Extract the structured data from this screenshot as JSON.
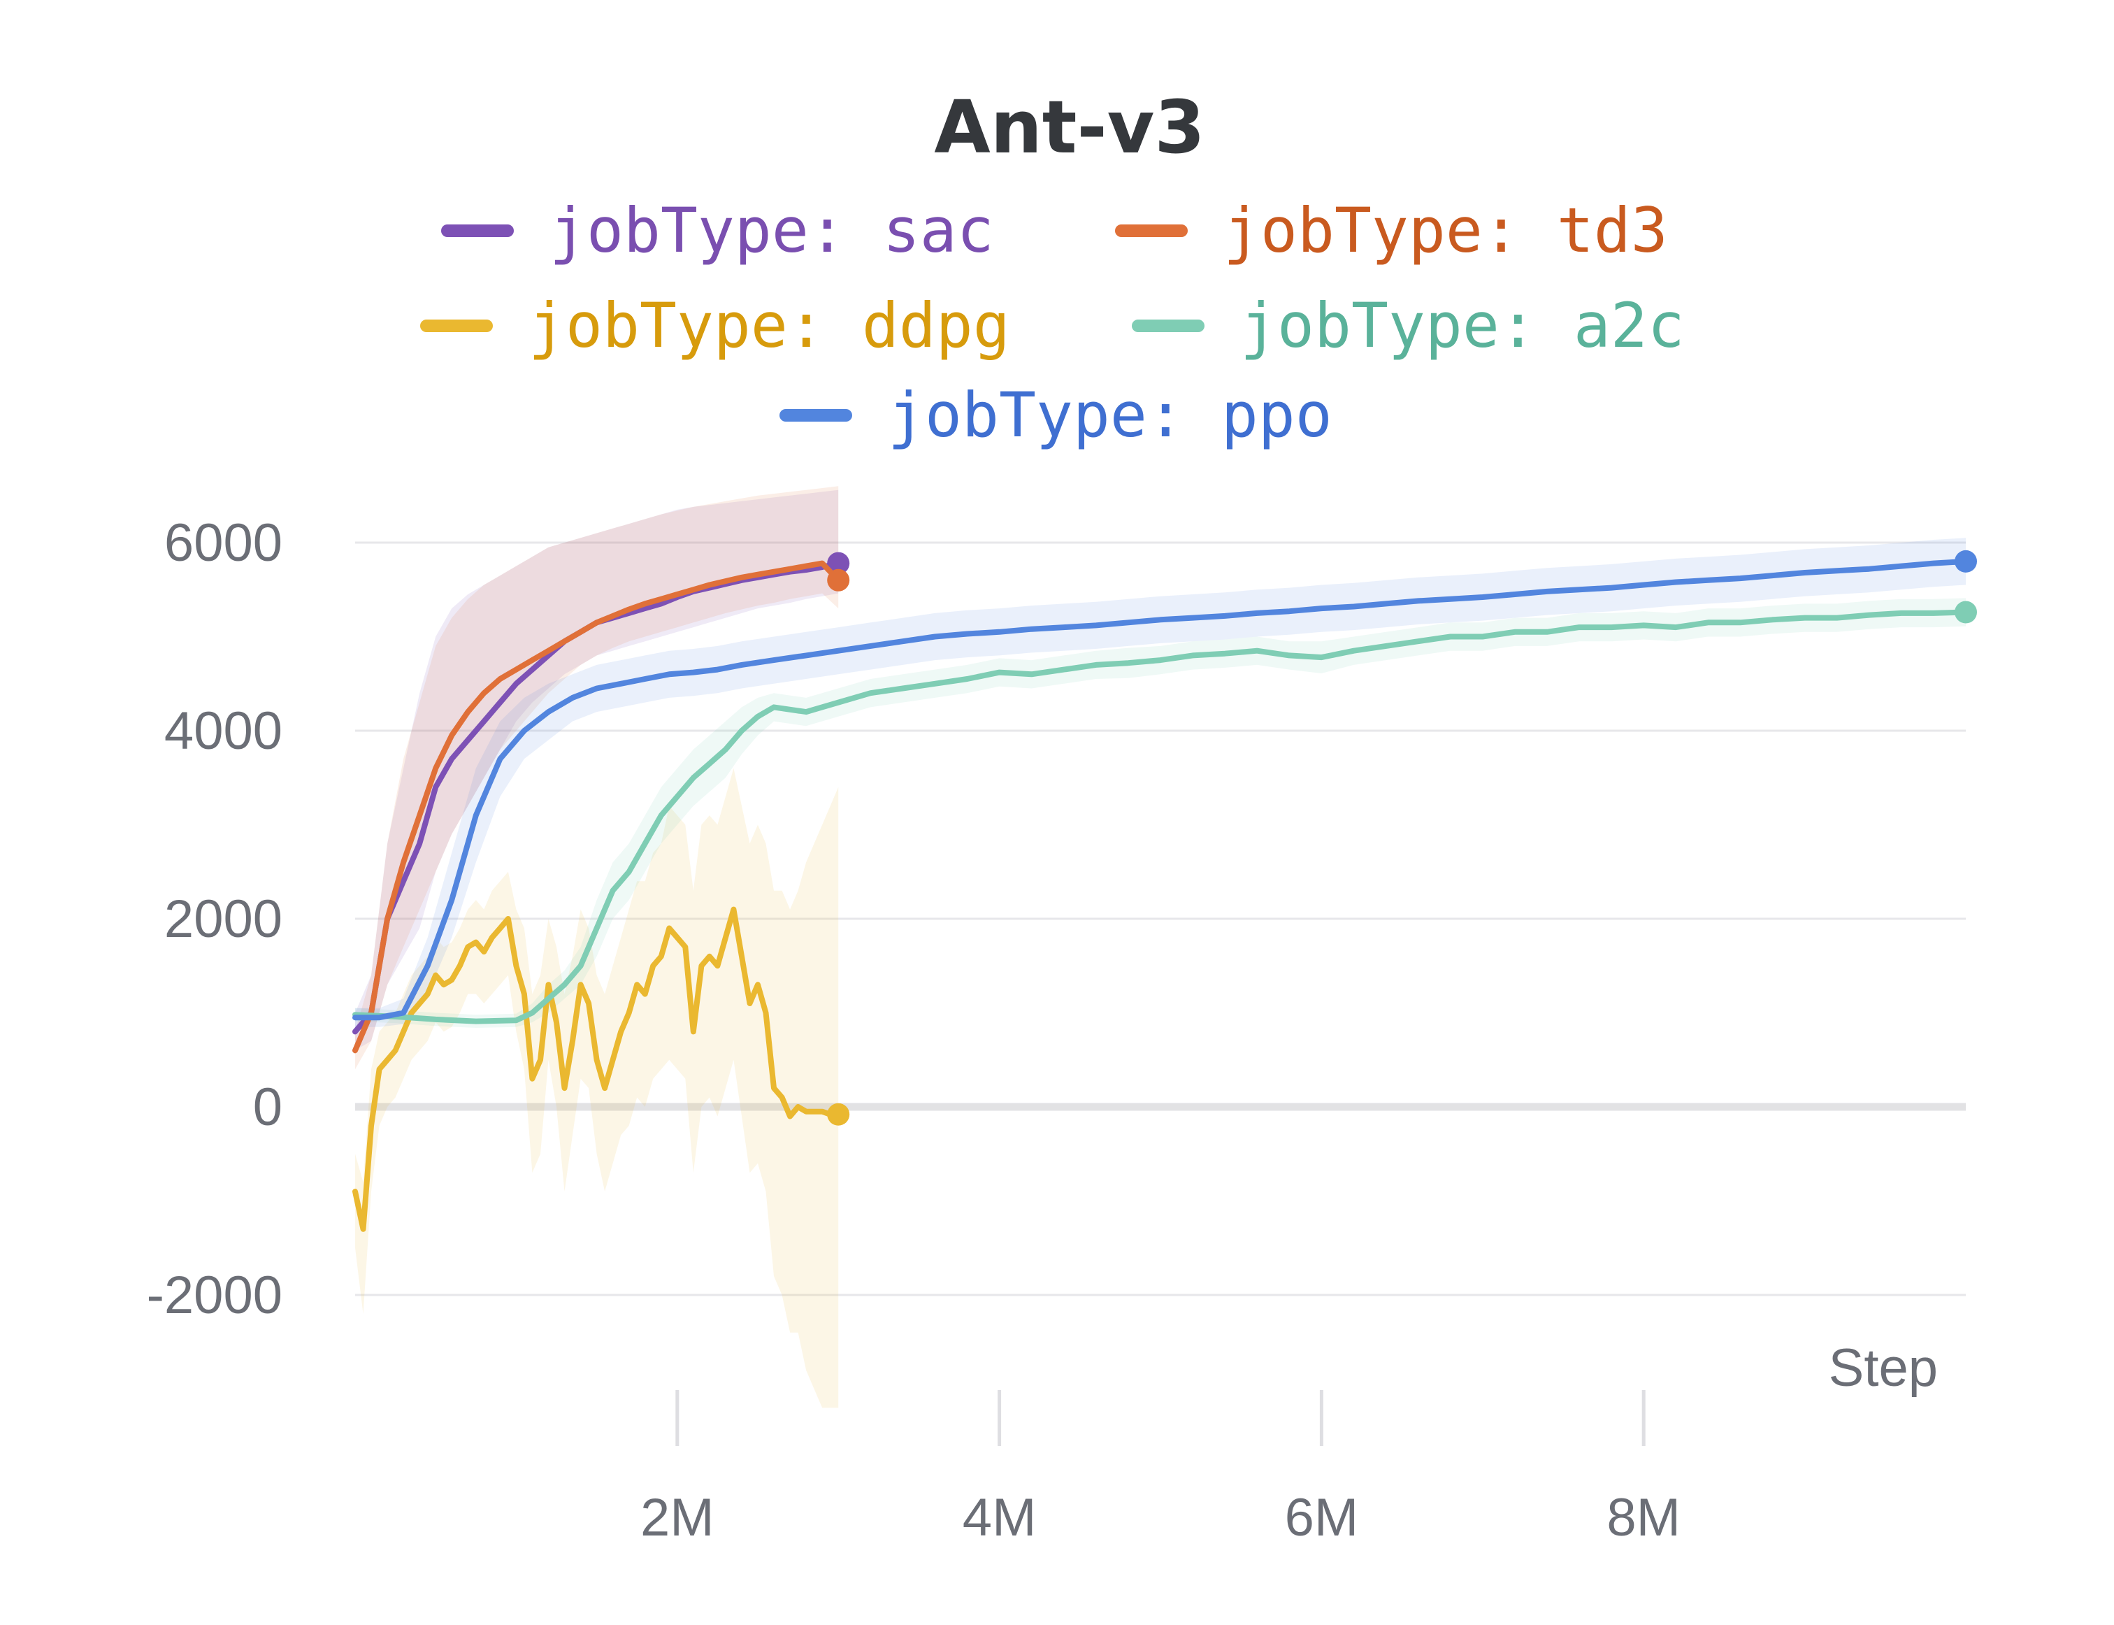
{
  "chart_data": {
    "type": "line",
    "title": "Ant-v3",
    "xlabel": "Step",
    "ylabel": "",
    "xlim": [
      0,
      10000000
    ],
    "ylim": [
      -2000,
      6000
    ],
    "x_ticks": [
      {
        "value": 2000000,
        "label": "2M"
      },
      {
        "value": 4000000,
        "label": "4M"
      },
      {
        "value": 6000000,
        "label": "6M"
      },
      {
        "value": 8000000,
        "label": "8M"
      }
    ],
    "y_ticks": [
      {
        "value": 6000,
        "label": "6000"
      },
      {
        "value": 4000,
        "label": "4000"
      },
      {
        "value": 2000,
        "label": "2000"
      },
      {
        "value": 0,
        "label": "0"
      },
      {
        "value": -2000,
        "label": "-2000"
      }
    ],
    "grid": true,
    "legend_position": "top",
    "series": [
      {
        "name": "jobType: sac",
        "color": "#7d51b5",
        "text_color": "#7a4fb0",
        "x": [
          0,
          100000,
          200000,
          300000,
          400000,
          500000,
          600000,
          700000,
          800000,
          900000,
          1000000,
          1100000,
          1200000,
          1300000,
          1400000,
          1500000,
          1600000,
          1700000,
          1800000,
          1900000,
          2000000,
          2100000,
          2200000,
          2300000,
          2400000,
          2500000,
          2600000,
          2700000,
          2800000,
          2900000,
          3000000
        ],
        "y": [
          800,
          1000,
          2000,
          2400,
          2800,
          3400,
          3700,
          3900,
          4100,
          4300,
          4500,
          4650,
          4800,
          4950,
          5050,
          5150,
          5200,
          5250,
          5300,
          5350,
          5420,
          5480,
          5520,
          5560,
          5600,
          5630,
          5660,
          5690,
          5710,
          5740,
          5780
        ],
        "band": {
          "upper": [
            1000,
            1400,
            2800,
            3600,
            4400,
            5000,
            5300,
            5450,
            5550,
            5650,
            5750,
            5850,
            5950,
            6000,
            6050,
            6100,
            6150,
            6200,
            6250,
            6300,
            6350,
            6380,
            6400,
            6420,
            6440,
            6460,
            6480,
            6500,
            6520,
            6540,
            6560
          ],
          "lower": [
            600,
            700,
            1300,
            1600,
            1900,
            2500,
            2900,
            3200,
            3500,
            3800,
            4100,
            4300,
            4450,
            4600,
            4700,
            4800,
            4850,
            4900,
            4950,
            5000,
            5050,
            5100,
            5150,
            5200,
            5250,
            5300,
            5330,
            5360,
            5400,
            5430,
            5460
          ]
        }
      },
      {
        "name": "jobType: td3",
        "color": "#e07038",
        "text_color": "#c95a1f",
        "x": [
          0,
          100000,
          200000,
          300000,
          400000,
          500000,
          600000,
          700000,
          800000,
          900000,
          1000000,
          1100000,
          1200000,
          1300000,
          1400000,
          1500000,
          1600000,
          1700000,
          1800000,
          1900000,
          2000000,
          2100000,
          2200000,
          2300000,
          2400000,
          2500000,
          2600000,
          2700000,
          2800000,
          2900000,
          3000000
        ],
        "y": [
          600,
          1000,
          2000,
          2600,
          3100,
          3600,
          3950,
          4200,
          4400,
          4550,
          4650,
          4750,
          4850,
          4950,
          5050,
          5150,
          5220,
          5290,
          5350,
          5400,
          5450,
          5500,
          5550,
          5590,
          5630,
          5660,
          5690,
          5720,
          5750,
          5780,
          5600
        ],
        "band": {
          "upper": [
            800,
            1400,
            2800,
            3700,
            4300,
            4900,
            5200,
            5400,
            5550,
            5650,
            5750,
            5850,
            5950,
            6000,
            6050,
            6100,
            6150,
            6200,
            6250,
            6300,
            6340,
            6380,
            6410,
            6440,
            6470,
            6500,
            6520,
            6540,
            6560,
            6580,
            6600
          ],
          "lower": [
            400,
            700,
            1300,
            1700,
            2100,
            2500,
            2900,
            3200,
            3500,
            3800,
            4000,
            4200,
            4400,
            4550,
            4700,
            4800,
            4880,
            4950,
            5000,
            5050,
            5100,
            5150,
            5200,
            5250,
            5290,
            5330,
            5360,
            5400,
            5430,
            5460,
            5300
          ]
        }
      },
      {
        "name": "jobType: ddpg",
        "color": "#eab830",
        "text_color": "#d79b0c",
        "x": [
          0,
          50000,
          100000,
          150000,
          200000,
          250000,
          300000,
          350000,
          400000,
          450000,
          500000,
          550000,
          600000,
          650000,
          700000,
          750000,
          800000,
          850000,
          900000,
          950000,
          1000000,
          1050000,
          1100000,
          1150000,
          1200000,
          1250000,
          1300000,
          1350000,
          1400000,
          1450000,
          1500000,
          1550000,
          1600000,
          1650000,
          1700000,
          1750000,
          1800000,
          1850000,
          1900000,
          1950000,
          2000000,
          2050000,
          2100000,
          2150000,
          2200000,
          2250000,
          2300000,
          2350000,
          2400000,
          2450000,
          2500000,
          2550000,
          2600000,
          2650000,
          2700000,
          2750000,
          2800000,
          2850000,
          2900000,
          2950000,
          3000000
        ],
        "y": [
          -900,
          -1300,
          -200,
          400,
          500,
          600,
          800,
          1000,
          1100,
          1200,
          1400,
          1300,
          1350,
          1500,
          1700,
          1750,
          1650,
          1800,
          1900,
          2000,
          1500,
          1200,
          300,
          500,
          1300,
          900,
          200,
          700,
          1300,
          1100,
          500,
          200,
          500,
          800,
          1000,
          1300,
          1200,
          1500,
          1600,
          1900,
          1800,
          1700,
          800,
          1500,
          1600,
          1500,
          1800,
          2100,
          1600,
          1100,
          1300,
          1000,
          200,
          100,
          -100,
          0,
          -50,
          -50,
          -50,
          -80,
          -80
        ],
        "band": {
          "upper": [
            -500,
            -800,
            400,
            800,
            900,
            1000,
            1200,
            1400,
            1500,
            1600,
            1800,
            1700,
            1750,
            1900,
            2100,
            2200,
            2100,
            2300,
            2400,
            2500,
            2100,
            1900,
            1200,
            1400,
            2000,
            1700,
            1200,
            1600,
            2100,
            1900,
            1400,
            1200,
            1500,
            1800,
            2100,
            2400,
            2400,
            2700,
            2800,
            3200,
            3100,
            3000,
            2300,
            3000,
            3100,
            3000,
            3300,
            3600,
            3200,
            2800,
            3000,
            2800,
            2300,
            2300,
            2100,
            2300,
            2600,
            2800,
            3000,
            3200,
            3400
          ],
          "lower": [
            -1500,
            -2200,
            -900,
            -200,
            0,
            100,
            300,
            500,
            600,
            700,
            900,
            800,
            850,
            1000,
            1200,
            1200,
            1100,
            1200,
            1300,
            1400,
            800,
            400,
            -700,
            -500,
            500,
            0,
            -900,
            -300,
            300,
            200,
            -500,
            -900,
            -600,
            -300,
            -200,
            100,
            0,
            300,
            400,
            500,
            400,
            300,
            -700,
            0,
            100,
            -100,
            200,
            500,
            -100,
            -700,
            -600,
            -900,
            -1800,
            -2000,
            -2400,
            -2400,
            -2800,
            -3000,
            -3200,
            -3200,
            -3200
          ]
        }
      },
      {
        "name": "jobType: a2c",
        "color": "#7fcdb4",
        "text_color": "#5ab29a",
        "x": [
          0,
          250000,
          500000,
          750000,
          1000000,
          1100000,
          1200000,
          1300000,
          1400000,
          1500000,
          1600000,
          1700000,
          1800000,
          1900000,
          2000000,
          2100000,
          2200000,
          2300000,
          2400000,
          2500000,
          2600000,
          2800000,
          3000000,
          3200000,
          3400000,
          3600000,
          3800000,
          4000000,
          4200000,
          4400000,
          4600000,
          4800000,
          5000000,
          5200000,
          5400000,
          5600000,
          5800000,
          6000000,
          6200000,
          6400000,
          6600000,
          6800000,
          7000000,
          7200000,
          7400000,
          7600000,
          7800000,
          8000000,
          8200000,
          8400000,
          8600000,
          8800000,
          9000000,
          9200000,
          9400000,
          9600000,
          9800000,
          10000000
        ],
        "y": [
          980,
          960,
          930,
          910,
          920,
          1000,
          1150,
          1300,
          1500,
          1900,
          2300,
          2500,
          2800,
          3100,
          3300,
          3500,
          3650,
          3800,
          4000,
          4150,
          4250,
          4200,
          4300,
          4400,
          4450,
          4500,
          4550,
          4620,
          4600,
          4650,
          4700,
          4720,
          4750,
          4800,
          4820,
          4850,
          4800,
          4780,
          4850,
          4900,
          4950,
          5000,
          5000,
          5050,
          5050,
          5100,
          5100,
          5120,
          5100,
          5150,
          5150,
          5180,
          5200,
          5200,
          5230,
          5250,
          5250,
          5260
        ],
        "band": {
          "upper": [
            1050,
            1030,
            1000,
            980,
            990,
            1100,
            1300,
            1450,
            1700,
            2200,
            2600,
            2800,
            3100,
            3400,
            3600,
            3800,
            3950,
            4100,
            4250,
            4350,
            4400,
            4350,
            4450,
            4550,
            4600,
            4650,
            4700,
            4770,
            4750,
            4800,
            4850,
            4880,
            4900,
            4950,
            4970,
            5000,
            4950,
            4950,
            5000,
            5050,
            5100,
            5150,
            5150,
            5200,
            5200,
            5250,
            5250,
            5270,
            5250,
            5300,
            5300,
            5330,
            5350,
            5350,
            5380,
            5400,
            5400,
            5410
          ],
          "lower": [
            910,
            890,
            860,
            840,
            850,
            900,
            1000,
            1150,
            1300,
            1600,
            2000,
            2200,
            2500,
            2800,
            3000,
            3200,
            3350,
            3500,
            3750,
            3950,
            4100,
            4050,
            4150,
            4250,
            4300,
            4350,
            4400,
            4470,
            4450,
            4500,
            4550,
            4560,
            4600,
            4650,
            4670,
            4700,
            4650,
            4610,
            4700,
            4750,
            4800,
            4850,
            4850,
            4900,
            4900,
            4950,
            4950,
            4970,
            4950,
            5000,
            5000,
            5030,
            5050,
            5050,
            5080,
            5100,
            5100,
            5110
          ]
        }
      },
      {
        "name": "jobType: ppo",
        "color": "#5285de",
        "text_color": "#3f6fd1",
        "x": [
          0,
          150000,
          300000,
          450000,
          600000,
          750000,
          900000,
          1050000,
          1200000,
          1350000,
          1500000,
          1650000,
          1800000,
          1950000,
          2100000,
          2250000,
          2400000,
          2600000,
          2800000,
          3000000,
          3200000,
          3400000,
          3600000,
          3800000,
          4000000,
          4200000,
          4400000,
          4600000,
          4800000,
          5000000,
          5200000,
          5400000,
          5600000,
          5800000,
          6000000,
          6200000,
          6400000,
          6600000,
          6800000,
          7000000,
          7200000,
          7400000,
          7600000,
          7800000,
          8000000,
          8200000,
          8400000,
          8600000,
          8800000,
          9000000,
          9200000,
          9400000,
          9600000,
          9800000,
          10000000
        ],
        "y": [
          950,
          950,
          1000,
          1500,
          2200,
          3100,
          3700,
          4000,
          4200,
          4350,
          4450,
          4500,
          4550,
          4600,
          4620,
          4650,
          4700,
          4750,
          4800,
          4850,
          4900,
          4950,
          5000,
          5030,
          5050,
          5080,
          5100,
          5120,
          5150,
          5180,
          5200,
          5220,
          5250,
          5270,
          5300,
          5320,
          5350,
          5380,
          5400,
          5420,
          5450,
          5480,
          5500,
          5520,
          5550,
          5580,
          5600,
          5620,
          5650,
          5680,
          5700,
          5720,
          5750,
          5780,
          5800
        ],
        "band": {
          "upper": [
            1050,
            1050,
            1150,
            1800,
            2700,
            3600,
            4100,
            4350,
            4500,
            4600,
            4700,
            4750,
            4800,
            4850,
            4870,
            4900,
            4950,
            5000,
            5050,
            5100,
            5150,
            5200,
            5250,
            5280,
            5300,
            5330,
            5350,
            5370,
            5400,
            5430,
            5450,
            5470,
            5500,
            5520,
            5550,
            5570,
            5600,
            5630,
            5650,
            5670,
            5700,
            5730,
            5750,
            5770,
            5800,
            5830,
            5850,
            5870,
            5900,
            5930,
            5950,
            5970,
            6000,
            6030,
            6050
          ],
          "lower": [
            850,
            850,
            880,
            1200,
            1800,
            2600,
            3300,
            3700,
            3900,
            4100,
            4200,
            4250,
            4300,
            4350,
            4370,
            4400,
            4450,
            4500,
            4550,
            4600,
            4650,
            4700,
            4750,
            4780,
            4800,
            4830,
            4850,
            4870,
            4900,
            4930,
            4950,
            4970,
            5000,
            5020,
            5050,
            5070,
            5100,
            5130,
            5150,
            5170,
            5200,
            5230,
            5250,
            5270,
            5300,
            5330,
            5350,
            5370,
            5400,
            5430,
            5450,
            5470,
            5500,
            5530,
            5550
          ]
        }
      }
    ]
  }
}
